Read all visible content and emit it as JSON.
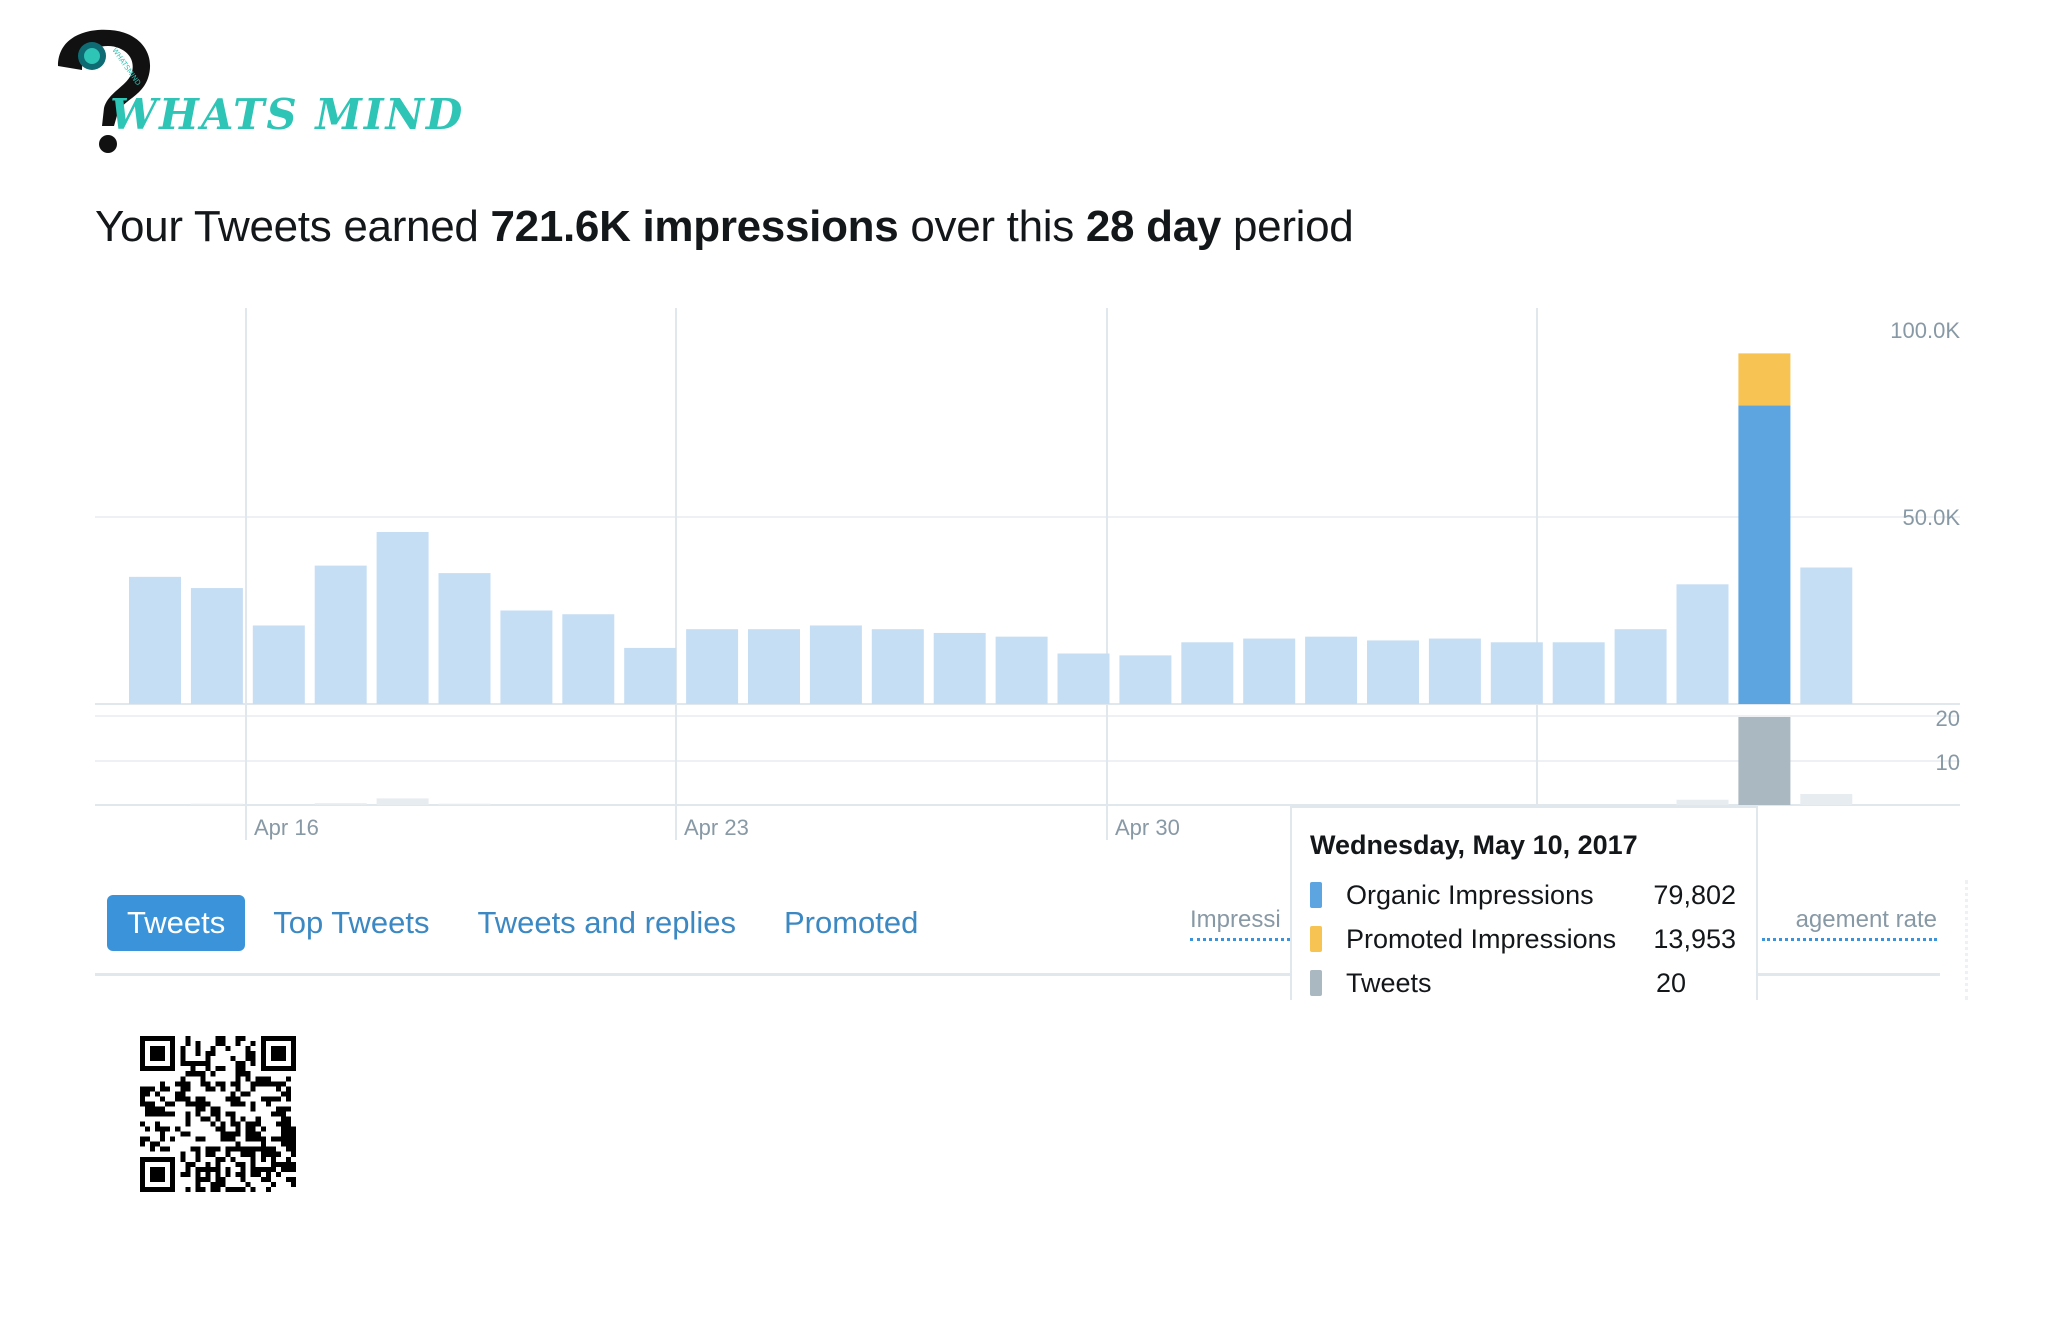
{
  "logo": {
    "text": "WHATS MIND",
    "badge_text": "WHATSMIND"
  },
  "headline": {
    "prefix": "Your Tweets earned ",
    "impressions": "721.6K impressions",
    "middle": " over this ",
    "period": "28 day",
    "suffix": " period"
  },
  "colors": {
    "organic": "#5da5e0",
    "organic_light": "#c6def3",
    "promoted": "#f7c453",
    "tweets": "#aab8c2",
    "tab_active": "#3b94d9",
    "accent": "#2ec4b6"
  },
  "chart_data": {
    "type": "bar",
    "x_ticks": [
      "Apr 16",
      "Apr 23",
      "Apr 30"
    ],
    "impressions_axis": {
      "ylim": [
        0,
        100000
      ],
      "tick_labels": [
        "100.0K",
        "50.0K"
      ]
    },
    "tweets_axis": {
      "ylim": [
        0,
        20
      ],
      "tick_labels": [
        "20",
        "10"
      ]
    },
    "series": [
      {
        "name": "Organic Impressions",
        "values": [
          34000,
          31000,
          21000,
          37000,
          46000,
          35000,
          25000,
          24000,
          15000,
          20000,
          20000,
          21000,
          20000,
          19000,
          18000,
          13500,
          13000,
          16500,
          17500,
          18000,
          17000,
          17500,
          16500,
          16500,
          20000,
          32000,
          79802,
          36500
        ]
      },
      {
        "name": "Promoted Impressions",
        "values": [
          0,
          0,
          0,
          0,
          0,
          0,
          0,
          0,
          0,
          0,
          0,
          0,
          0,
          0,
          0,
          0,
          0,
          0,
          0,
          0,
          0,
          0,
          0,
          0,
          0,
          0,
          13953,
          0
        ]
      },
      {
        "name": "Tweets",
        "values": [
          0,
          0.3,
          0,
          0.4,
          1.5,
          0.3,
          0,
          0,
          0,
          0,
          0,
          0,
          0,
          0,
          0,
          0,
          0,
          0,
          0,
          0,
          0,
          0,
          0,
          0,
          0,
          1.2,
          20,
          2.5
        ]
      }
    ],
    "highlighted_index": 26
  },
  "tabs": [
    {
      "label": "Tweets",
      "active": true
    },
    {
      "label": "Top Tweets",
      "active": false
    },
    {
      "label": "Tweets and replies",
      "active": false
    },
    {
      "label": "Promoted",
      "active": false
    }
  ],
  "toggles": {
    "left": "Impressi",
    "right": "agement rate"
  },
  "tooltip": {
    "date": "Wednesday, May 10, 2017",
    "rows": [
      {
        "label": "Organic Impressions",
        "value": "79,802",
        "color": "#5da5e0"
      },
      {
        "label": "Promoted Impressions",
        "value": "13,953",
        "color": "#f7c453"
      },
      {
        "label": "Tweets",
        "value": "20",
        "color": "#aab8c2"
      }
    ]
  }
}
